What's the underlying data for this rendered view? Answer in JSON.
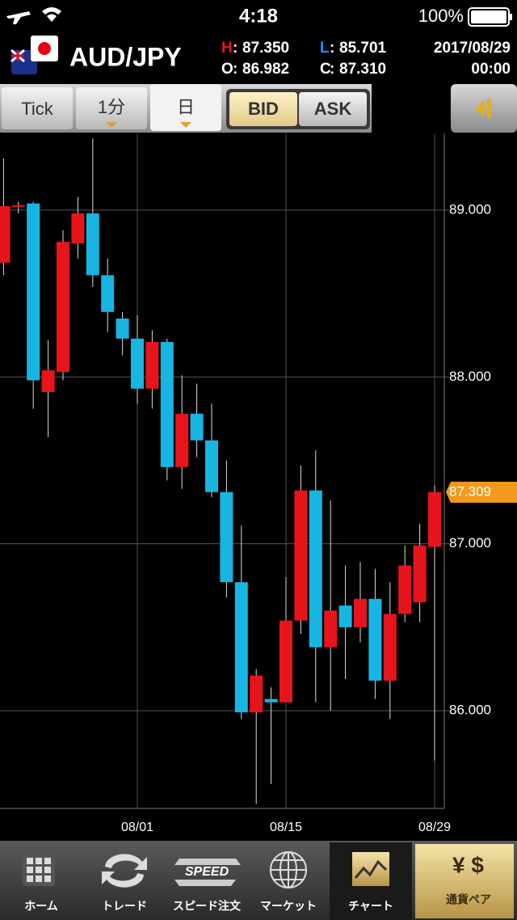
{
  "status_bar": {
    "time": "4:18",
    "battery": "100%"
  },
  "header": {
    "pair": "AUD/JPY",
    "separator": ":",
    "high_label": "H",
    "high": "87.350",
    "low_label": "L",
    "low": "85.701",
    "open_label": "O",
    "open": "86.982",
    "close_label": "C",
    "close": "87.310",
    "date": "2017/08/29",
    "time": "00:00"
  },
  "toolbar": {
    "tick": "Tick",
    "minute": "1分",
    "day": "日",
    "bid": "BID",
    "ask": "ASK"
  },
  "tabs": [
    "ホーム",
    "トレード",
    "スピード注文",
    "マーケット",
    "チャート",
    "通貨ペア"
  ],
  "speed_icon": "SPEED",
  "chart_data": {
    "type": "candlestick",
    "categories": [
      null,
      null,
      null,
      null,
      null,
      null,
      null,
      null,
      null,
      "08/01",
      null,
      null,
      null,
      null,
      null,
      null,
      null,
      null,
      null,
      "08/15",
      null,
      null,
      null,
      null,
      null,
      null,
      null,
      null,
      null,
      "08/29"
    ],
    "open": [
      88.685,
      89.02,
      89.04,
      87.91,
      88.03,
      88.8,
      88.98,
      88.61,
      88.35,
      88.23,
      87.93,
      88.21,
      87.46,
      87.78,
      87.62,
      87.31,
      86.77,
      85.99,
      86.07,
      86.05,
      86.54,
      87.32,
      86.38,
      86.63,
      86.5,
      86.67,
      86.18,
      86.58,
      86.65,
      86.982
    ],
    "high": [
      89.31,
      89.05,
      89.05,
      88.22,
      88.88,
      89.08,
      89.43,
      88.71,
      88.39,
      88.37,
      88.28,
      88.23,
      88.01,
      87.96,
      87.84,
      87.5,
      87.11,
      86.25,
      86.14,
      86.8,
      87.47,
      87.56,
      87.26,
      86.87,
      86.89,
      86.85,
      86.77,
      86.99,
      87.12,
      87.35
    ],
    "low": [
      88.61,
      88.98,
      87.81,
      87.64,
      87.98,
      88.71,
      88.54,
      88.27,
      88.13,
      87.84,
      87.81,
      87.38,
      87.33,
      87.52,
      87.28,
      86.68,
      85.95,
      85.44,
      85.56,
      86.05,
      86.46,
      86.05,
      86.0,
      86.19,
      86.41,
      86.07,
      85.95,
      86.53,
      86.53,
      85.701
    ],
    "close": [
      89.024,
      89.03,
      87.98,
      88.04,
      88.81,
      88.98,
      88.61,
      88.39,
      88.23,
      87.93,
      88.21,
      87.46,
      87.78,
      87.62,
      87.31,
      86.77,
      85.99,
      86.21,
      86.05,
      86.54,
      87.32,
      86.38,
      86.6,
      86.5,
      86.67,
      86.18,
      86.58,
      86.87,
      86.99,
      87.31
    ],
    "up_color": "#e8141c",
    "down_color": "#17b6e2",
    "ylim": [
      85.414,
      89.46
    ],
    "yticks": [
      {
        "value": 86,
        "label": "86.000"
      },
      {
        "value": 87,
        "label": "87.000"
      },
      {
        "value": 88,
        "label": "88.000"
      },
      {
        "value": 89,
        "label": "89.000"
      }
    ],
    "last_price": {
      "value": 87.309,
      "label": "87.309"
    },
    "grid": true
  }
}
